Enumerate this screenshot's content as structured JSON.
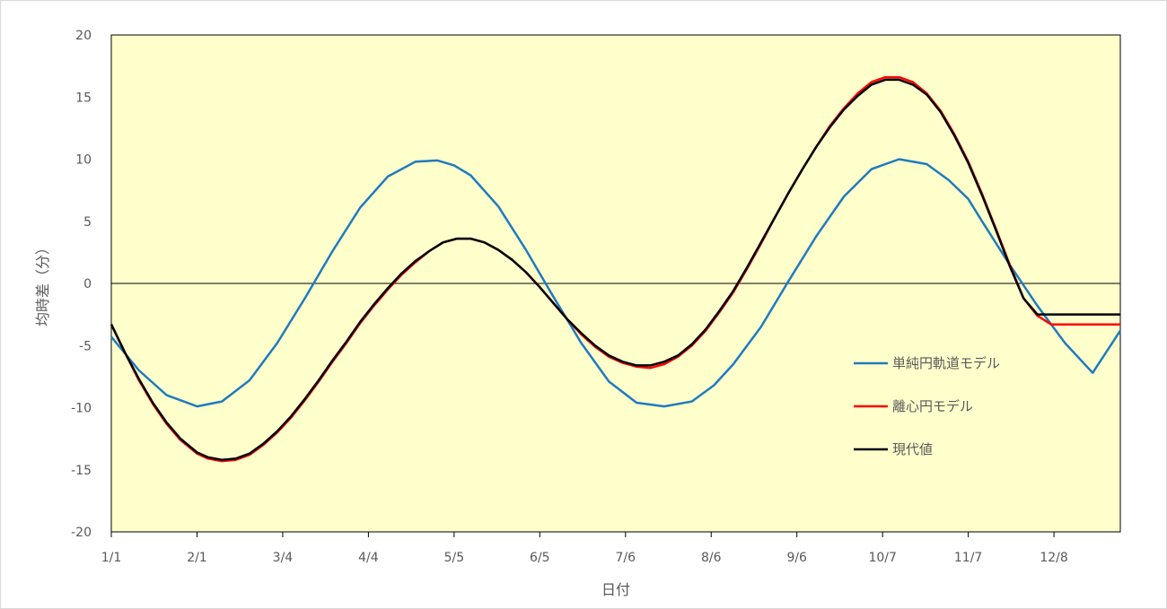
{
  "chart_data": {
    "type": "line",
    "title": "",
    "xlabel": "日付",
    "ylabel": "均時差（分）",
    "ylim": [
      -20,
      20
    ],
    "xlim": [
      0,
      365
    ],
    "y_ticks": [
      20,
      15,
      10,
      5,
      0,
      -5,
      -10,
      -15,
      -20
    ],
    "x_ticks": [
      {
        "label": "1/1",
        "day": 0
      },
      {
        "label": "2/1",
        "day": 31
      },
      {
        "label": "3/4",
        "day": 62
      },
      {
        "label": "4/4",
        "day": 93
      },
      {
        "label": "5/5",
        "day": 124
      },
      {
        "label": "6/5",
        "day": 155
      },
      {
        "label": "7/6",
        "day": 186
      },
      {
        "label": "8/6",
        "day": 217
      },
      {
        "label": "9/6",
        "day": 248
      },
      {
        "label": "10/7",
        "day": 279
      },
      {
        "label": "11/7",
        "day": 310
      },
      {
        "label": "12/8",
        "day": 341
      }
    ],
    "grid": false,
    "zero_line": true,
    "legend_position": "right",
    "background_color": "#ffffcc",
    "series": [
      {
        "name": "単純円軌道モデル",
        "color": "#1f7bbf",
        "x": [
          0,
          10,
          20,
          31,
          40,
          50,
          60,
          70,
          80,
          90,
          100,
          110,
          118,
          124,
          130,
          140,
          150,
          160,
          170,
          180,
          190,
          200,
          210,
          218,
          225,
          235,
          245,
          255,
          265,
          275,
          285,
          295,
          303,
          310,
          315,
          325,
          335,
          345,
          355,
          365
        ],
        "y": [
          -4.3,
          -7.0,
          -9.0,
          -9.9,
          -9.5,
          -7.8,
          -4.8,
          -1.2,
          2.6,
          6.1,
          8.6,
          9.8,
          9.9,
          9.5,
          8.7,
          6.2,
          2.7,
          -1.1,
          -4.8,
          -7.9,
          -9.6,
          -9.9,
          -9.5,
          -8.2,
          -6.5,
          -3.5,
          0.2,
          3.8,
          7.0,
          9.2,
          10.0,
          9.6,
          8.3,
          6.8,
          5.0,
          1.5,
          -1.8,
          -4.8,
          -7.2,
          -3.8
        ]
      },
      {
        "name": "離心円モデル",
        "color": "#ff0000",
        "x": [
          0,
          5,
          10,
          15,
          20,
          25,
          31,
          35,
          40,
          45,
          50,
          55,
          60,
          65,
          70,
          75,
          80,
          85,
          90,
          95,
          100,
          105,
          110,
          115,
          120,
          125,
          130,
          135,
          140,
          145,
          150,
          155,
          160,
          165,
          170,
          175,
          180,
          185,
          190,
          195,
          200,
          205,
          210,
          215,
          220,
          225,
          230,
          235,
          240,
          245,
          250,
          255,
          260,
          265,
          270,
          275,
          280,
          285,
          290,
          295,
          300,
          305,
          310,
          315,
          320,
          325,
          330,
          335,
          340,
          345,
          350,
          355,
          360,
          365
        ],
        "y": [
          -3.3,
          -5.6,
          -7.8,
          -9.7,
          -11.3,
          -12.6,
          -13.7,
          -14.1,
          -14.3,
          -14.2,
          -13.8,
          -13.0,
          -12.0,
          -10.8,
          -9.4,
          -7.9,
          -6.3,
          -4.8,
          -3.2,
          -1.8,
          -0.5,
          0.7,
          1.7,
          2.6,
          3.3,
          3.6,
          3.6,
          3.3,
          2.7,
          1.9,
          0.9,
          -0.3,
          -1.6,
          -2.9,
          -4.1,
          -5.1,
          -5.9,
          -6.4,
          -6.7,
          -6.8,
          -6.5,
          -5.9,
          -5.0,
          -3.8,
          -2.3,
          -0.7,
          1.2,
          3.2,
          5.3,
          7.3,
          9.2,
          11.0,
          12.7,
          14.1,
          15.3,
          16.2,
          16.6,
          16.6,
          16.2,
          15.3,
          13.9,
          12.0,
          9.8,
          7.2,
          4.4,
          1.5,
          -1.2,
          -2.6,
          -3.3,
          -3.3,
          -3.3,
          -3.3,
          -3.3,
          -3.3
        ]
      },
      {
        "name": "現代値",
        "color": "#000000",
        "x": [
          0,
          5,
          10,
          15,
          20,
          25,
          31,
          35,
          40,
          45,
          50,
          55,
          60,
          65,
          70,
          75,
          80,
          85,
          90,
          95,
          100,
          105,
          110,
          115,
          120,
          125,
          130,
          135,
          140,
          145,
          150,
          155,
          160,
          165,
          170,
          175,
          180,
          185,
          190,
          195,
          200,
          205,
          210,
          215,
          220,
          225,
          230,
          235,
          240,
          245,
          250,
          255,
          260,
          265,
          270,
          275,
          280,
          285,
          290,
          295,
          300,
          305,
          310,
          315,
          320,
          325,
          330,
          335,
          340,
          345,
          350,
          355,
          360,
          365
        ],
        "y": [
          -3.3,
          -5.6,
          -7.7,
          -9.6,
          -11.2,
          -12.5,
          -13.6,
          -14.0,
          -14.2,
          -14.1,
          -13.7,
          -12.9,
          -11.9,
          -10.7,
          -9.3,
          -7.8,
          -6.2,
          -4.7,
          -3.1,
          -1.7,
          -0.4,
          0.8,
          1.8,
          2.6,
          3.3,
          3.6,
          3.6,
          3.3,
          2.7,
          1.9,
          0.9,
          -0.3,
          -1.6,
          -2.9,
          -4.0,
          -5.0,
          -5.8,
          -6.3,
          -6.6,
          -6.6,
          -6.3,
          -5.8,
          -4.9,
          -3.7,
          -2.2,
          -0.6,
          1.3,
          3.3,
          5.3,
          7.3,
          9.2,
          11.0,
          12.6,
          14.0,
          15.1,
          16.0,
          16.4,
          16.4,
          16.0,
          15.2,
          13.8,
          11.9,
          9.7,
          7.1,
          4.3,
          1.4,
          -1.2,
          -2.5,
          -2.5,
          -2.5,
          -2.5,
          -2.5,
          -2.5,
          -2.5
        ]
      }
    ]
  }
}
